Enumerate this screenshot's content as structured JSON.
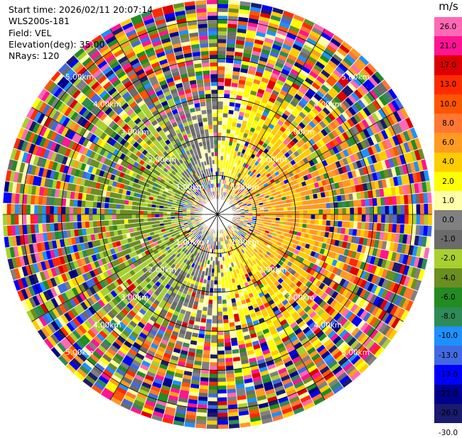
{
  "info": {
    "start_time": "Start time: 2026/02/11 20:07:14",
    "station": "WLS200s-181",
    "field": "Field: VEL",
    "elevation": "Elevation(deg): 35.00",
    "nrays": "NRays: 120"
  },
  "chart_data": {
    "type": "heatmap",
    "projection": "polar (PPI)",
    "field": "VEL",
    "unit": "m/s",
    "range_rings_km": [
      1,
      2,
      3,
      4,
      5
    ],
    "ring_labels": [
      "1.00km",
      "2.00km",
      "3.00km",
      "4.00km",
      "5.00km"
    ],
    "max_range_km": 5.5,
    "n_rays": 120,
    "colorbar": {
      "unit": "m/s",
      "ticks": [
        "26.0",
        "21.0",
        "17.0",
        "13.0",
        "10.0",
        "8.0",
        "6.0",
        "4.0",
        "2.0",
        "1.0",
        "0.0",
        "-1.0",
        "-2.0",
        "-4.0",
        "-6.0",
        "-8.0",
        "-10.0",
        "-13.0",
        "-17.0",
        "-21.0",
        "-26.0",
        "-30.0"
      ],
      "colors": [
        "#ff69b4",
        "#ff1493",
        "#dd0000",
        "#ff2a00",
        "#ff5500",
        "#ff7733",
        "#ff9a22",
        "#ffcc00",
        "#ffff00",
        "#ffffaa",
        "#808080",
        "#6b6b6b",
        "#a8d030",
        "#6b8e23",
        "#228b22",
        "#2e8b57",
        "#1e90ff",
        "#4169e1",
        "#0000ff",
        "#00008b",
        "#1a1a6e"
      ]
    }
  }
}
